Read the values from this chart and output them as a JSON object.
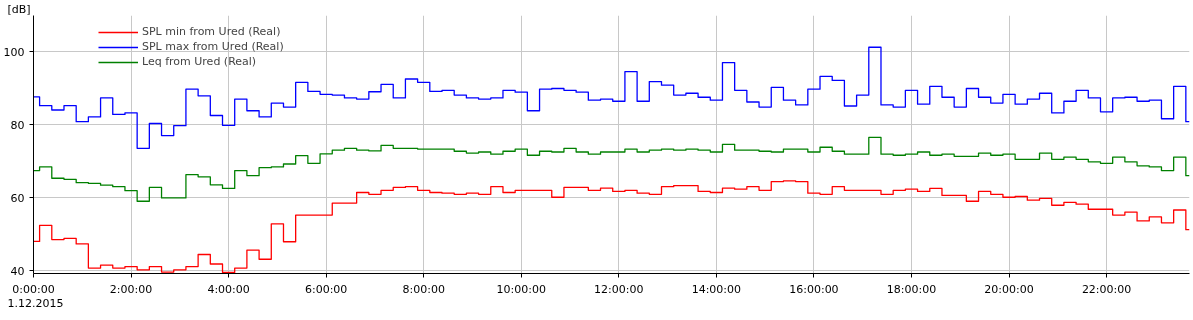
{
  "chart_data": {
    "type": "step",
    "ylabel": "[dB]",
    "annotations": [
      "1.12.2015"
    ],
    "x": [
      0,
      0.125,
      0.375,
      0.625,
      0.875,
      1.125,
      1.375,
      1.625,
      1.875,
      2.125,
      2.375,
      2.625,
      2.875,
      3.125,
      3.375,
      3.625,
      3.875,
      4.125,
      4.375,
      4.625,
      4.875,
      5.125,
      5.375,
      5.625,
      5.875,
      6.125,
      6.375,
      6.625,
      6.875,
      7.125,
      7.375,
      7.625,
      7.875,
      8.125,
      8.375,
      8.625,
      8.875,
      9.125,
      9.375,
      9.625,
      9.875,
      10.125,
      10.375,
      10.625,
      10.875,
      11.125,
      11.375,
      11.625,
      11.875,
      12.125,
      12.375,
      12.625,
      12.875,
      13.125,
      13.375,
      13.625,
      13.875,
      14.125,
      14.375,
      14.625,
      14.875,
      15.125,
      15.375,
      15.625,
      15.875,
      16.125,
      16.375,
      16.625,
      16.875,
      17.125,
      17.375,
      17.625,
      17.875,
      18.125,
      18.375,
      18.625,
      18.875,
      19.125,
      19.375,
      19.625,
      19.875,
      20.125,
      20.375,
      20.625,
      20.875,
      21.125,
      21.375,
      21.625,
      21.875,
      22.125,
      22.375,
      22.625,
      22.875,
      23.125,
      23.375,
      23.625
    ],
    "series": [
      {
        "name": "SPL min from Ured (Real)",
        "color": "#ff0000",
        "values": [
          48.1,
          52.5,
          48.6,
          48.9,
          47.4,
          40.8,
          41.6,
          40.8,
          41.2,
          40.3,
          41.2,
          39.7,
          40.3,
          41.2,
          44.5,
          41.9,
          39.6,
          40.8,
          45.7,
          43.2,
          52.9,
          48.0,
          55.3,
          55.3,
          55.3,
          58.6,
          58.6,
          61.5,
          61.0,
          62.1,
          62.9,
          63.1,
          62.1,
          61.5,
          61.3,
          61.0,
          61.3,
          61.0,
          63.1,
          61.5,
          62.1,
          62.1,
          62.1,
          60.2,
          62.9,
          62.9,
          62.1,
          62.7,
          61.8,
          62.1,
          61.3,
          61.0,
          63.1,
          63.4,
          63.4,
          61.8,
          61.5,
          62.7,
          62.4,
          63.1,
          62.1,
          64.5,
          64.7,
          64.5,
          61.3,
          61.0,
          63.1,
          62.1,
          62.1,
          62.1,
          61.0,
          62.1,
          62.4,
          61.8,
          62.6,
          60.7,
          60.7,
          59.1,
          61.8,
          61.0,
          60.2,
          60.4,
          59.4,
          59.9,
          58.0,
          58.8,
          58.3,
          56.9,
          56.9,
          55.3,
          56.1,
          53.7,
          54.8,
          53.2,
          56.7,
          51.3
        ]
      },
      {
        "name": "SPL max from Ured (Real)",
        "color": "#0000ff",
        "values": [
          87.7,
          85.3,
          84.1,
          85.3,
          80.9,
          82.2,
          87.4,
          82.9,
          83.3,
          73.6,
          80.4,
          77.1,
          79.8,
          89.8,
          88.0,
          82.6,
          79.9,
          87.1,
          83.9,
          82.2,
          86.0,
          84.9,
          91.7,
          89.2,
          88.4,
          88.2,
          87.4,
          87.1,
          89.1,
          91.1,
          87.4,
          92.6,
          91.7,
          89.2,
          89.5,
          88.2,
          87.4,
          87.1,
          87.4,
          89.5,
          89.0,
          83.9,
          89.8,
          90.0,
          89.5,
          89.0,
          86.8,
          87.1,
          86.5,
          94.6,
          86.5,
          91.9,
          90.9,
          88.2,
          88.7,
          87.6,
          86.8,
          97.1,
          89.5,
          86.3,
          84.9,
          90.3,
          86.8,
          85.5,
          89.8,
          93.3,
          92.2,
          85.2,
          88.2,
          101.3,
          85.5,
          84.9,
          89.5,
          85.7,
          90.6,
          87.6,
          84.9,
          90.0,
          87.6,
          86.0,
          88.4,
          85.7,
          87.1,
          88.7,
          83.3,
          86.5,
          89.5,
          87.4,
          83.6,
          87.4,
          87.6,
          86.5,
          86.8,
          81.7,
          90.6,
          80.9
        ]
      },
      {
        "name": "Leq from Ured (Real)",
        "color": "#008000",
        "values": [
          67.5,
          68.5,
          65.4,
          65.1,
          64.2,
          64.0,
          63.5,
          63.1,
          62.0,
          59.1,
          62.9,
          60.0,
          60.0,
          66.4,
          65.8,
          63.6,
          62.6,
          67.5,
          66.1,
          68.3,
          68.5,
          69.3,
          71.6,
          69.5,
          72.1,
          73.1,
          73.6,
          73.1,
          72.9,
          74.4,
          73.6,
          73.6,
          73.4,
          73.4,
          73.4,
          72.8,
          72.3,
          72.6,
          72.0,
          72.8,
          73.4,
          71.7,
          72.8,
          72.6,
          73.6,
          72.6,
          72.0,
          72.6,
          72.6,
          73.4,
          72.6,
          73.1,
          73.4,
          73.1,
          73.4,
          73.1,
          72.6,
          74.7,
          73.1,
          73.1,
          72.8,
          72.6,
          73.4,
          73.4,
          72.6,
          73.9,
          72.8,
          72.0,
          72.0,
          76.6,
          72.0,
          71.7,
          72.0,
          72.6,
          71.7,
          72.0,
          71.4,
          71.4,
          72.3,
          71.7,
          72.0,
          70.6,
          70.6,
          72.3,
          70.6,
          71.2,
          70.6,
          69.9,
          69.5,
          71.2,
          69.9,
          68.8,
          68.5,
          67.5,
          71.2,
          66.1
        ]
      }
    ],
    "xlim": [
      0,
      23.7
    ],
    "ylim": [
      39.3,
      110
    ],
    "xticks": [
      {
        "value": 0,
        "label": "0:00:00"
      },
      {
        "value": 2,
        "label": "2:00:00"
      },
      {
        "value": 4,
        "label": "4:00:00"
      },
      {
        "value": 6,
        "label": "6:00:00"
      },
      {
        "value": 8,
        "label": "8:00:00"
      },
      {
        "value": 10,
        "label": "10:00:00"
      },
      {
        "value": 12,
        "label": "12:00:00"
      },
      {
        "value": 14,
        "label": "14:00:00"
      },
      {
        "value": 16,
        "label": "16:00:00"
      },
      {
        "value": 18,
        "label": "18:00:00"
      },
      {
        "value": 20,
        "label": "20:00:00"
      },
      {
        "value": 22,
        "label": "22:00:00"
      }
    ],
    "yticks": [
      40,
      60,
      80,
      100
    ],
    "grid": true,
    "legend": "top left",
    "line_style": "solid"
  }
}
